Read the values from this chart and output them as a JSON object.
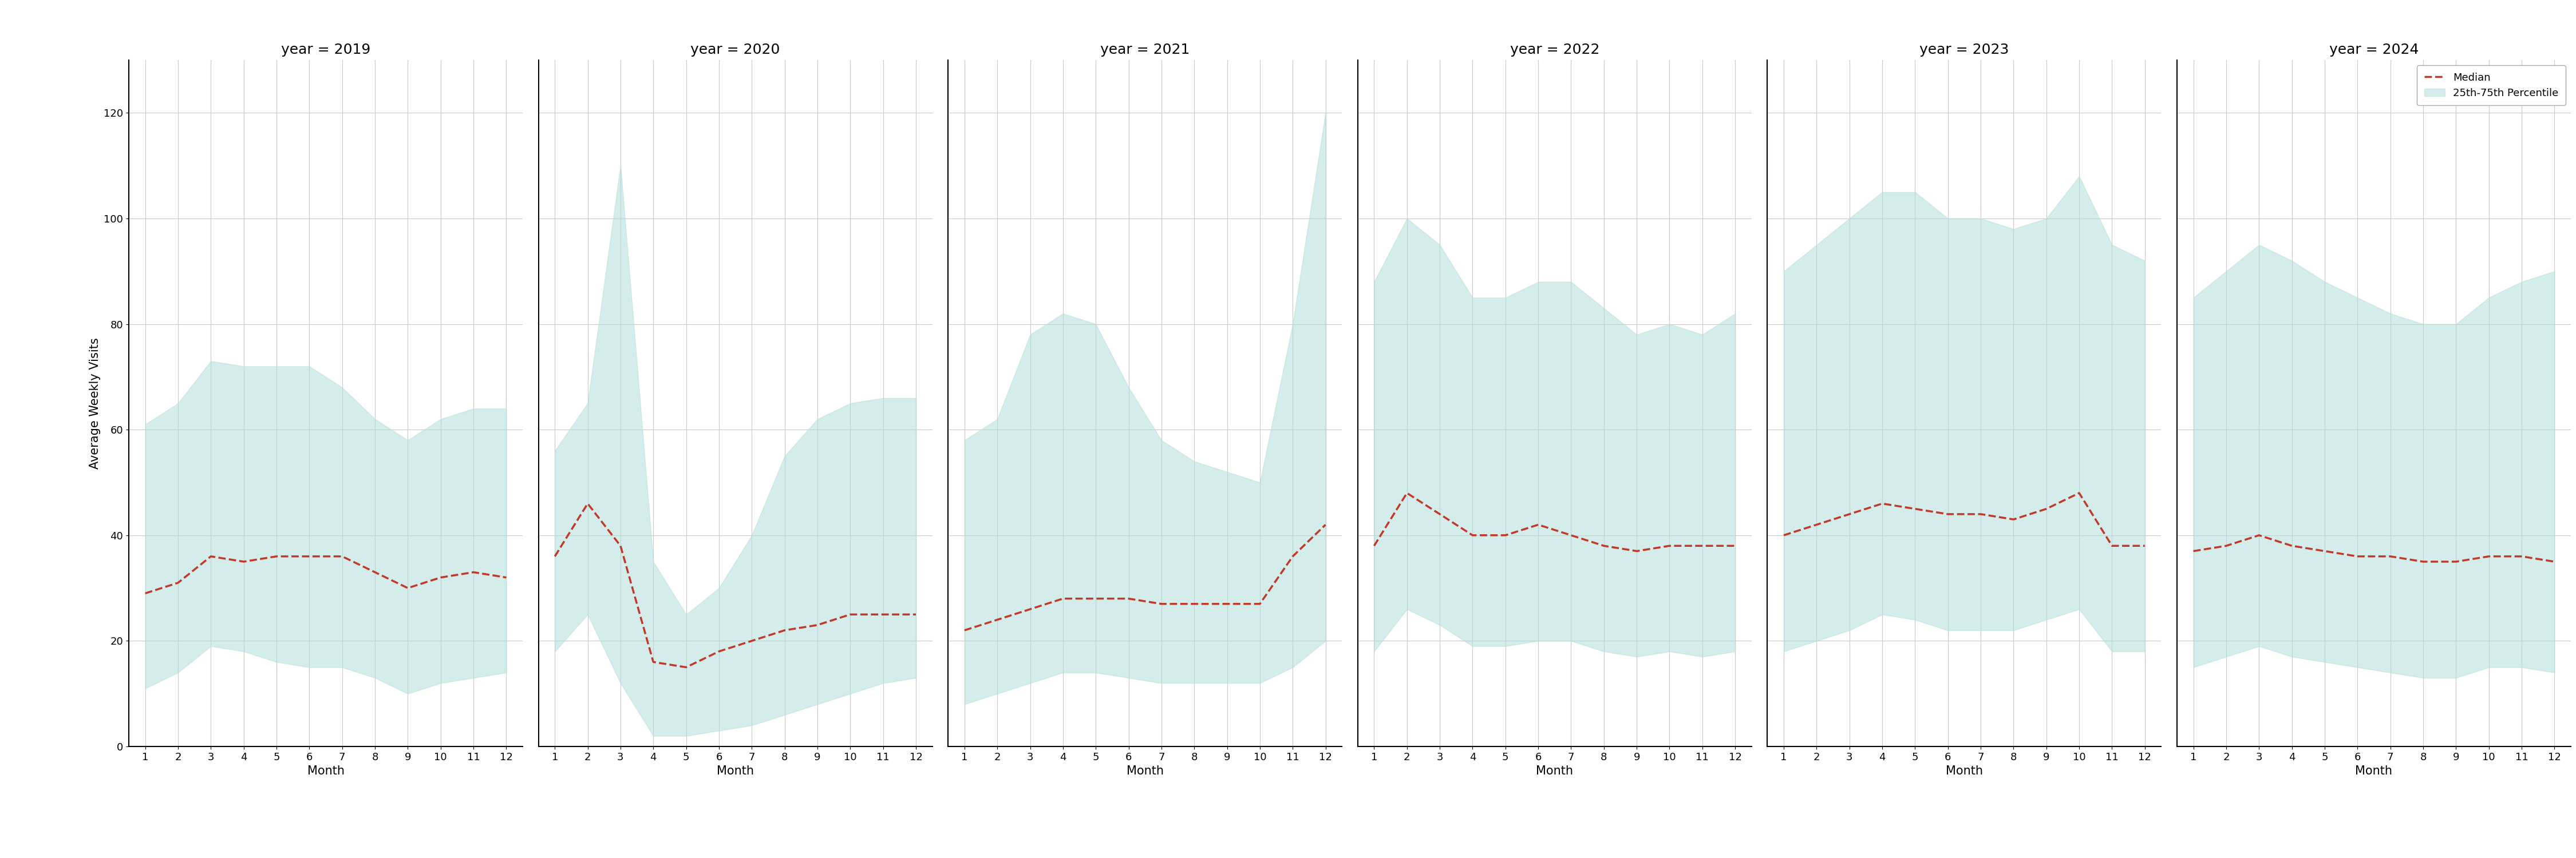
{
  "years": [
    2019,
    2020,
    2021,
    2022,
    2023,
    2024
  ],
  "months": [
    1,
    2,
    3,
    4,
    5,
    6,
    7,
    8,
    9,
    10,
    11,
    12
  ],
  "median": {
    "2019": [
      29,
      31,
      36,
      35,
      36,
      36,
      36,
      33,
      30,
      32,
      33,
      32
    ],
    "2020": [
      36,
      46,
      38,
      16,
      15,
      18,
      20,
      22,
      23,
      25,
      25,
      25
    ],
    "2021": [
      22,
      24,
      26,
      28,
      28,
      28,
      27,
      27,
      27,
      27,
      36,
      42
    ],
    "2022": [
      38,
      48,
      44,
      40,
      40,
      42,
      40,
      38,
      37,
      38,
      38,
      38
    ],
    "2023": [
      40,
      42,
      44,
      46,
      45,
      44,
      44,
      43,
      45,
      48,
      38,
      38
    ],
    "2024": [
      37,
      38,
      40,
      38,
      37,
      36,
      36,
      35,
      35,
      36,
      36,
      35
    ]
  },
  "q25": {
    "2019": [
      11,
      14,
      19,
      18,
      16,
      15,
      15,
      13,
      10,
      12,
      13,
      14
    ],
    "2020": [
      18,
      25,
      12,
      2,
      2,
      3,
      4,
      6,
      8,
      10,
      12,
      13
    ],
    "2021": [
      8,
      10,
      12,
      14,
      14,
      13,
      12,
      12,
      12,
      12,
      15,
      20
    ],
    "2022": [
      18,
      26,
      23,
      19,
      19,
      20,
      20,
      18,
      17,
      18,
      17,
      18
    ],
    "2023": [
      18,
      20,
      22,
      25,
      24,
      22,
      22,
      22,
      24,
      26,
      18,
      18
    ],
    "2024": [
      15,
      17,
      19,
      17,
      16,
      15,
      14,
      13,
      13,
      15,
      15,
      14
    ]
  },
  "q75": {
    "2019": [
      61,
      65,
      73,
      72,
      72,
      72,
      68,
      62,
      58,
      62,
      64,
      64
    ],
    "2020": [
      56,
      65,
      110,
      35,
      25,
      30,
      40,
      55,
      62,
      65,
      66,
      66
    ],
    "2021": [
      58,
      62,
      78,
      82,
      80,
      68,
      58,
      54,
      52,
      50,
      80,
      120
    ],
    "2022": [
      88,
      100,
      95,
      85,
      85,
      88,
      88,
      83,
      78,
      80,
      78,
      82
    ],
    "2023": [
      90,
      95,
      100,
      105,
      105,
      100,
      100,
      98,
      100,
      108,
      95,
      92
    ],
    "2024": [
      85,
      90,
      95,
      92,
      88,
      85,
      82,
      80,
      80,
      85,
      88,
      90
    ]
  },
  "fill_color": "#b2dfdb",
  "fill_alpha": 0.55,
  "line_color": "#c0392b",
  "line_style": "--",
  "line_width": 2.5,
  "ylabel": "Average Weekly Visits",
  "xlabel": "Month",
  "ylim": [
    0,
    130
  ],
  "yticks": [
    0,
    20,
    40,
    60,
    80,
    100,
    120
  ],
  "xticks": [
    1,
    2,
    3,
    4,
    5,
    6,
    7,
    8,
    9,
    10,
    11,
    12
  ],
  "legend_median_label": "Median",
  "legend_fill_label": "25th-75th Percentile",
  "background_color": "#ffffff",
  "spine_color": "#000000",
  "grid_color": "#c8c8c8",
  "tick_fontsize": 13,
  "label_fontsize": 15,
  "title_fontsize": 18
}
